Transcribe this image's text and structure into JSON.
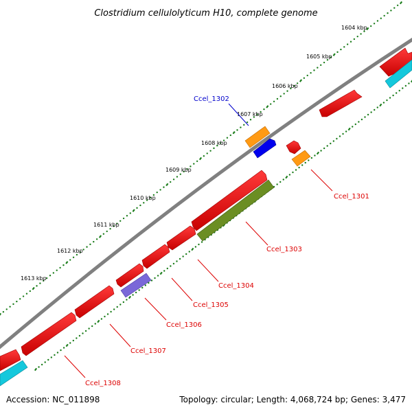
{
  "title": "Clostridium cellulolyticum H10, complete genome",
  "footer": {
    "accession": "Accession: NC_011898",
    "summary": "Topology: circular; Length: 4,068,724 bp; Genes: 3,477"
  },
  "colors": {
    "backbone": "#808080",
    "tick_dots": "#1b7d1b",
    "cds": "#ff0000",
    "cds_shade": "#b00000",
    "gene_orange": "#ff9a14",
    "gene_blue": "#0000ee",
    "gene_olive": "#6b8e23",
    "gene_slate": "#7a68d8",
    "gene_cyan": "#14c8dc",
    "label_red": "#dd0000",
    "label_blue": "#0000cc"
  },
  "ticks": [
    {
      "label": "1604 kbp"
    },
    {
      "label": "1605 kbp"
    },
    {
      "label": "1606 kbp"
    },
    {
      "label": "1607 kbp"
    },
    {
      "label": "1608 kbp"
    },
    {
      "label": "1609 kbp"
    },
    {
      "label": "1610 kbp"
    },
    {
      "label": "1611 kbp"
    },
    {
      "label": "1612 kbp"
    },
    {
      "label": "1613 kbp"
    }
  ],
  "genes": [
    {
      "label": "Ccel_1302",
      "color_key": "label_blue"
    },
    {
      "label": "Ccel_1301",
      "color_key": "label_red"
    },
    {
      "label": "Ccel_1303",
      "color_key": "label_red"
    },
    {
      "label": "Ccel_1304",
      "color_key": "label_red"
    },
    {
      "label": "Ccel_1305",
      "color_key": "label_red"
    },
    {
      "label": "Ccel_1306",
      "color_key": "label_red"
    },
    {
      "label": "Ccel_1307",
      "color_key": "label_red"
    },
    {
      "label": "Ccel_1308",
      "color_key": "label_red"
    }
  ]
}
